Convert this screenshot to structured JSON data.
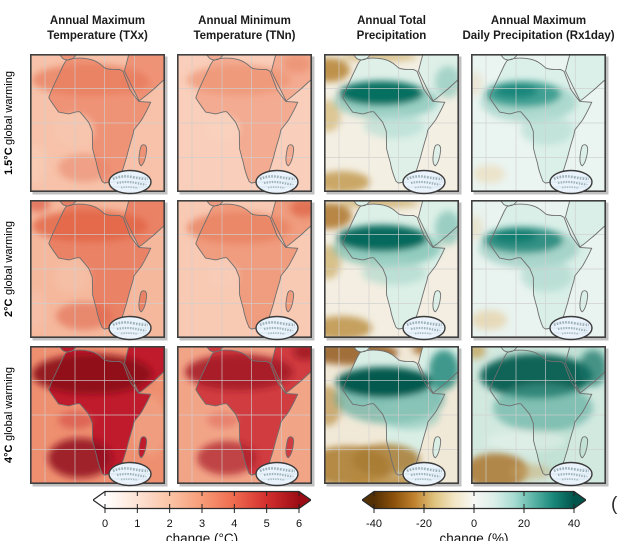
{
  "header": {
    "columns": [
      {
        "line1": "Annual Maximum",
        "line2": "Temperature (TXx)"
      },
      {
        "line1": "Annual Minimum",
        "line2": "Temperature (TNn)"
      },
      {
        "line1": "Annual Total",
        "line2": "Precipitation"
      },
      {
        "line1": "Annual Maximum",
        "line2": "Daily Precipitation (Rx1day)"
      }
    ]
  },
  "rows": [
    {
      "bold": "1.5°C",
      "rest": "global warming"
    },
    {
      "bold": "2°C",
      "rest": "global warming"
    },
    {
      "bold": "4°C",
      "rest": "global warming"
    }
  ],
  "colorbars": {
    "temperature": {
      "label": "change (°C)",
      "ticks": [
        "0",
        "1",
        "2",
        "3",
        "4",
        "5",
        "6"
      ],
      "min": 0,
      "max": 6,
      "extend": "both",
      "colors": [
        "#ffffff",
        "#fde3d4",
        "#fbc4a6",
        "#f79b77",
        "#ef6a4e",
        "#d32f2e",
        "#9c0c14"
      ]
    },
    "precipitation": {
      "label": "change (%)",
      "ticks": [
        "-40",
        "-20",
        "0",
        "20",
        "40"
      ],
      "min": -40,
      "max": 40,
      "extend": "both",
      "colors": [
        "#543005",
        "#8c510a",
        "#bf812d",
        "#dfc27d",
        "#f2e6c5",
        "#f7f7f5",
        "#dcefe9",
        "#a8dcd2",
        "#59b3a5",
        "#18867a",
        "#01544a"
      ]
    }
  },
  "map_style": {
    "grid": "#cfcfcf",
    "coast": "#6f6f6f",
    "border": "#3f3f3f",
    "inset_fill": "#eaf3fb"
  },
  "panels": [
    {
      "id": "txx-1p5c",
      "variable": "TXx",
      "warming": "1.5°C",
      "ocean": "#f7c2a9",
      "land": "#ef9377",
      "under": [
        [
          5,
          110,
          10,
          20,
          "#f9cdb6",
          0.7
        ]
      ],
      "over": [
        [
          60,
          26,
          58,
          16,
          "#e87c5d",
          0.75
        ],
        [
          44,
          76,
          20,
          16,
          "#f7c6ae",
          0.85
        ],
        [
          54,
          114,
          26,
          14,
          "#e87f61",
          0.5
        ],
        [
          106,
          30,
          16,
          10,
          "#e87c5d",
          0.4
        ]
      ]
    },
    {
      "id": "tnn-1p5c",
      "variable": "TNn",
      "warming": "1.5°C",
      "ocean": "#f9ceba",
      "land": "#f3ab91",
      "under": [],
      "over": [
        [
          62,
          26,
          52,
          15,
          "#ee9372",
          0.7
        ],
        [
          45,
          75,
          18,
          14,
          "#f9d2bd",
          0.7
        ],
        [
          120,
          10,
          14,
          9,
          "#e8835f",
          0.5
        ]
      ]
    },
    {
      "id": "pr-1p5c",
      "variable": "Annual Total Precipitation",
      "warming": "1.5°C",
      "ocean": "#f3efe3",
      "land": "#def0e8",
      "under": [
        [
          6,
          16,
          20,
          12,
          "#b9883c",
          0.9
        ],
        [
          4,
          62,
          13,
          16,
          "#d9bf87",
          0.85
        ],
        [
          18,
          128,
          28,
          11,
          "#c39b51",
          0.85
        ],
        [
          55,
          3,
          38,
          5,
          "#cfb06b",
          0.7
        ]
      ],
      "over": [
        [
          62,
          47,
          52,
          18,
          "#63b5a6",
          0.55
        ],
        [
          57,
          39,
          42,
          12,
          "#00695c",
          0.95
        ],
        [
          124,
          28,
          13,
          16,
          "#8fc9bc",
          0.7
        ],
        [
          70,
          72,
          30,
          12,
          "#aedbd0",
          0.6
        ]
      ]
    },
    {
      "id": "rx1day-1p5c",
      "variable": "Rx1day",
      "warming": "1.5°C",
      "ocean": "#eaf4f0",
      "land": "#dbf0e9",
      "under": [
        [
          18,
          120,
          16,
          9,
          "#ecdfc1",
          0.8
        ],
        [
          4,
          30,
          8,
          12,
          "#e9dec5",
          0.6
        ]
      ],
      "over": [
        [
          58,
          48,
          48,
          20,
          "#8ec9bc",
          0.6
        ],
        [
          52,
          40,
          38,
          13,
          "#2f968a",
          0.85
        ],
        [
          45,
          37,
          22,
          7,
          "#117f73",
          0.8
        ],
        [
          76,
          76,
          26,
          15,
          "#b7ded4",
          0.7
        ]
      ]
    },
    {
      "id": "txx-2c",
      "variable": "TXx",
      "warming": "2°C",
      "ocean": "#f5b89d",
      "land": "#ea8266",
      "under": [
        [
          5,
          110,
          10,
          20,
          "#f7c3ab",
          0.6
        ]
      ],
      "over": [
        [
          60,
          26,
          58,
          16,
          "#e26443",
          0.8
        ],
        [
          42,
          78,
          18,
          15,
          "#f5c0a8",
          0.8
        ],
        [
          54,
          116,
          28,
          14,
          "#df6247",
          0.55
        ],
        [
          8,
          4,
          12,
          8,
          "#d94f39",
          0.6
        ]
      ]
    },
    {
      "id": "tnn-2c",
      "variable": "TNn",
      "warming": "2°C",
      "ocean": "#f8c9b3",
      "land": "#f09c7e",
      "under": [],
      "over": [
        [
          62,
          28,
          52,
          16,
          "#e98361",
          0.8
        ],
        [
          46,
          76,
          16,
          13,
          "#f8cdb9",
          0.65
        ],
        [
          127,
          8,
          14,
          9,
          "#dd6145",
          0.7
        ]
      ]
    },
    {
      "id": "pr-2c",
      "variable": "Annual Total Precipitation",
      "warming": "2°C",
      "ocean": "#f3eee1",
      "land": "#dcf0e7",
      "under": [
        [
          6,
          16,
          22,
          13,
          "#b17c33",
          0.9
        ],
        [
          4,
          62,
          13,
          17,
          "#d4b87c",
          0.85
        ],
        [
          18,
          128,
          30,
          12,
          "#bd9349",
          0.85
        ],
        [
          55,
          3,
          40,
          5,
          "#c9a75f",
          0.75
        ]
      ],
      "over": [
        [
          63,
          48,
          54,
          19,
          "#58ae9f",
          0.55
        ],
        [
          58,
          38,
          45,
          13,
          "#006457",
          0.95
        ],
        [
          124,
          28,
          13,
          17,
          "#85c3b5",
          0.75
        ],
        [
          70,
          73,
          32,
          12,
          "#a6d6ca",
          0.6
        ]
      ]
    },
    {
      "id": "rx1day-2c",
      "variable": "Rx1day",
      "warming": "2°C",
      "ocean": "#e9f3ef",
      "land": "#d9efe8",
      "under": [
        [
          18,
          120,
          18,
          10,
          "#e6d6b2",
          0.85
        ],
        [
          4,
          28,
          8,
          12,
          "#e7dabd",
          0.6
        ]
      ],
      "over": [
        [
          58,
          48,
          50,
          20,
          "#83c2b4",
          0.6
        ],
        [
          52,
          40,
          40,
          13,
          "#23897d",
          0.9
        ],
        [
          44,
          36,
          22,
          7,
          "#0b786c",
          0.8
        ],
        [
          76,
          76,
          26,
          16,
          "#aed9ce",
          0.7
        ]
      ]
    },
    {
      "id": "txx-4c",
      "variable": "TXx",
      "warming": "4°C",
      "ocean": "#ee8f70",
      "land": "#bf1b2c",
      "under": [
        [
          120,
          80,
          18,
          30,
          "#f2a98c",
          0.5
        ]
      ],
      "over": [
        [
          62,
          28,
          60,
          20,
          "#8b0c1b",
          0.9
        ],
        [
          50,
          112,
          32,
          20,
          "#920f1e",
          0.85
        ],
        [
          46,
          74,
          18,
          9,
          "#cf4140",
          0.55
        ]
      ]
    },
    {
      "id": "tnn-4c",
      "variable": "TNn",
      "warming": "4°C",
      "ocean": "#f2a487",
      "land": "#d03c40",
      "under": [],
      "over": [
        [
          62,
          26,
          54,
          18,
          "#a21424",
          0.85
        ],
        [
          50,
          112,
          30,
          17,
          "#aa1a27",
          0.7
        ],
        [
          46,
          74,
          16,
          8,
          "#dd5f55",
          0.5
        ],
        [
          128,
          6,
          12,
          8,
          "#971020",
          0.7
        ]
      ]
    },
    {
      "id": "pr-4c",
      "variable": "Annual Total Precipitation",
      "warming": "4°C",
      "ocean": "#f1e9d8",
      "land": "#d9efe6",
      "under": [
        [
          28,
          7,
          46,
          12,
          "#99622a",
          0.9
        ],
        [
          110,
          3,
          22,
          7,
          "#a06a2b",
          0.85
        ],
        [
          4,
          60,
          14,
          20,
          "#c5a264",
          0.85
        ],
        [
          24,
          120,
          42,
          20,
          "#ad7f33",
          0.9
        ],
        [
          60,
          136,
          40,
          8,
          "#b68a3c",
          0.8
        ]
      ],
      "over": [
        [
          66,
          52,
          55,
          26,
          "#4ba394",
          0.6
        ],
        [
          60,
          36,
          48,
          15,
          "#00564a",
          0.97
        ],
        [
          120,
          24,
          15,
          20,
          "#1b8375",
          0.8
        ],
        [
          62,
          114,
          34,
          16,
          "#a87b31",
          0.85
        ],
        [
          86,
          70,
          30,
          14,
          "#8cc7b9",
          0.6
        ]
      ]
    },
    {
      "id": "rx1day-4c",
      "variable": "Rx1day",
      "warming": "4°C",
      "ocean": "#d2e9e0",
      "land": "#c2e2d6",
      "under": [
        [
          25,
          125,
          32,
          18,
          "#ab762e",
          0.85
        ],
        [
          5,
          5,
          10,
          8,
          "#c59c50",
          0.7
        ]
      ],
      "over": [
        [
          65,
          30,
          56,
          22,
          "#00594c",
          0.92
        ],
        [
          72,
          62,
          50,
          24,
          "#4aa496",
          0.55
        ],
        [
          122,
          22,
          14,
          18,
          "#0b7265",
          0.7
        ],
        [
          55,
          95,
          40,
          10,
          "#e9f4ee",
          0.5
        ],
        [
          60,
          126,
          20,
          8,
          "#c8a768",
          0.5
        ]
      ]
    }
  ],
  "cropped_text": "("
}
